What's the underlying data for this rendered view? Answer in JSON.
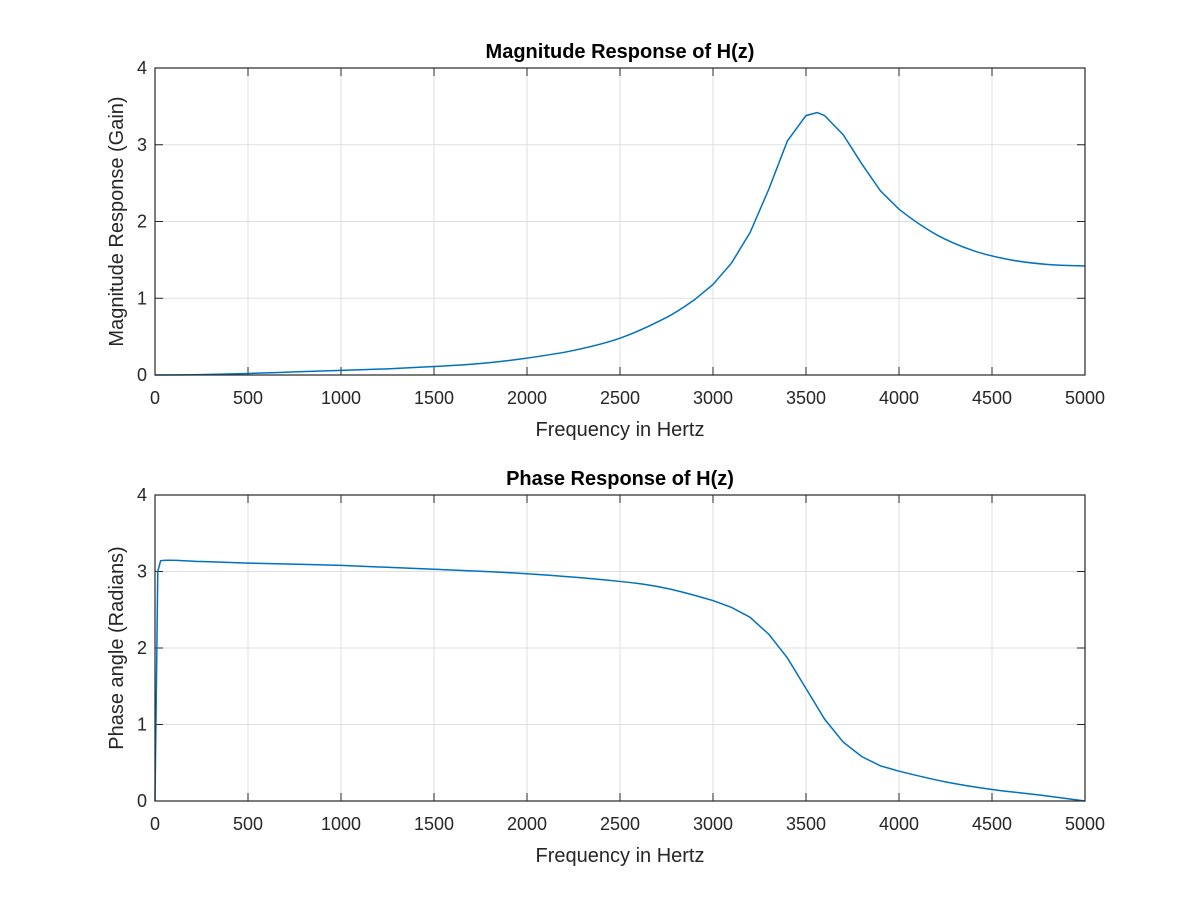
{
  "chart_data": [
    {
      "type": "line",
      "title": "Magnitude Response of H(z)",
      "xlabel": "Frequency in Hertz",
      "ylabel": "Magnitude Response (Gain)",
      "xlim": [
        0,
        5000
      ],
      "ylim": [
        0,
        4
      ],
      "xticks": [
        "0",
        "500",
        "1000",
        "1500",
        "2000",
        "2500",
        "3000",
        "3500",
        "4000",
        "4500",
        "5000"
      ],
      "yticks": [
        "0",
        "1",
        "2",
        "3",
        "4"
      ],
      "grid": true,
      "line_color": "#0072BD",
      "series": [
        {
          "x": [
            0,
            250,
            500,
            750,
            1000,
            1250,
            1500,
            1750,
            2000,
            2250,
            2500,
            2750,
            2900,
            3000,
            3100,
            3200,
            3300,
            3400,
            3500,
            3560,
            3600,
            3700,
            3800,
            3900,
            4000,
            4200,
            4400,
            4600,
            4800,
            5000
          ],
          "y": [
            0.0,
            0.005,
            0.02,
            0.04,
            0.06,
            0.08,
            0.11,
            0.15,
            0.22,
            0.32,
            0.48,
            0.75,
            0.98,
            1.18,
            1.46,
            1.86,
            2.42,
            3.05,
            3.38,
            3.42,
            3.38,
            3.13,
            2.75,
            2.4,
            2.16,
            1.83,
            1.62,
            1.5,
            1.44,
            1.42
          ]
        }
      ]
    },
    {
      "type": "line",
      "title": "Phase Response of H(z)",
      "xlabel": "Frequency in Hertz",
      "ylabel": "Phase angle (Radians)",
      "xlim": [
        0,
        5000
      ],
      "ylim": [
        0,
        4
      ],
      "xticks": [
        "0",
        "500",
        "1000",
        "1500",
        "2000",
        "2500",
        "3000",
        "3500",
        "4000",
        "4500",
        "5000"
      ],
      "yticks": [
        "0",
        "1",
        "2",
        "3",
        "4"
      ],
      "grid": true,
      "line_color": "#0072BD",
      "series": [
        {
          "x": [
            0,
            15,
            30,
            250,
            500,
            1000,
            1500,
            2000,
            2500,
            2750,
            3000,
            3100,
            3200,
            3300,
            3400,
            3500,
            3600,
            3700,
            3800,
            3900,
            4000,
            4250,
            4500,
            4750,
            5000
          ],
          "y": [
            0.0,
            3.0,
            3.14,
            3.13,
            3.11,
            3.08,
            3.03,
            2.97,
            2.87,
            2.78,
            2.62,
            2.53,
            2.4,
            2.18,
            1.87,
            1.47,
            1.07,
            0.77,
            0.58,
            0.46,
            0.39,
            0.25,
            0.15,
            0.08,
            0.0
          ]
        }
      ]
    }
  ]
}
